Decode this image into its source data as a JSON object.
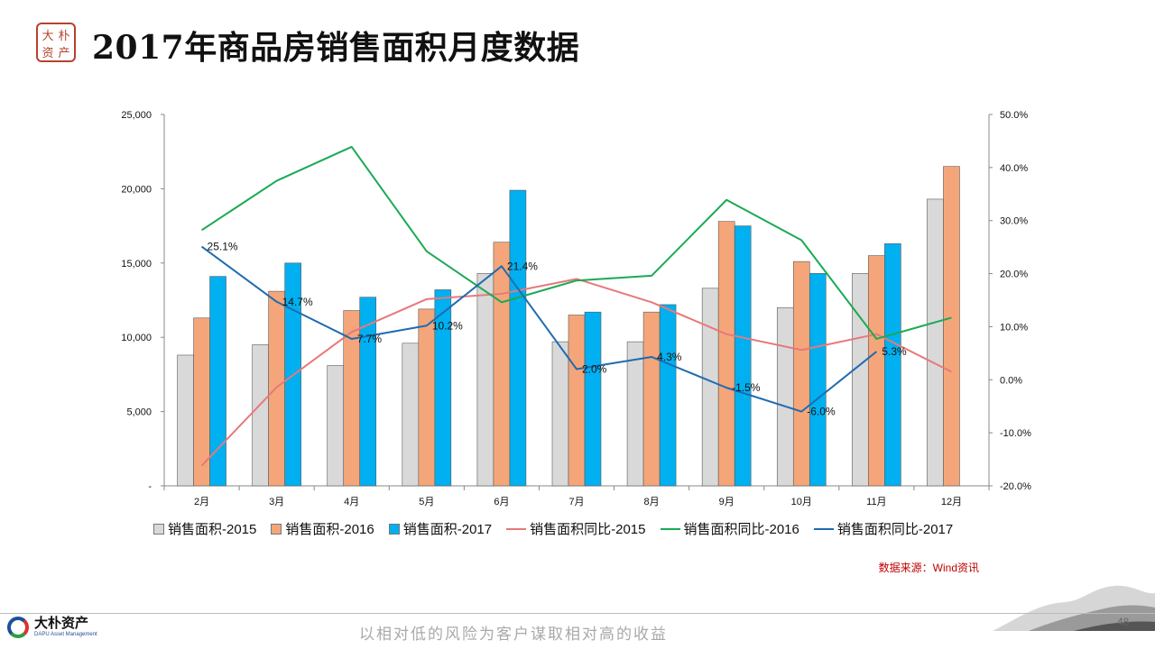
{
  "header": {
    "seal_chars": [
      "大",
      "朴",
      "资",
      "产"
    ],
    "title": "2017年商品房销售面积月度数据"
  },
  "source_note": "数据来源：Wind资讯",
  "footer": {
    "brand_name": "大朴资产",
    "brand_en": "DAPU Asset Management",
    "slogan": "以相对低的风险为客户谋取相对高的收益",
    "page_number": "48"
  },
  "colors": {
    "bar_2015": "#d9d9d9",
    "bar_2016": "#f4a67a",
    "bar_2017": "#00b0f0",
    "line_2015": "#e8787a",
    "line_2016": "#1aaa55",
    "line_2017": "#1f6bb0"
  },
  "chart_data": {
    "type": "bar",
    "categories": [
      "2月",
      "3月",
      "4月",
      "5月",
      "6月",
      "7月",
      "8月",
      "9月",
      "10月",
      "11月",
      "12月"
    ],
    "ylim": [
      0,
      25000
    ],
    "y_ticks": [
      "-",
      "5,000",
      "10,000",
      "15,000",
      "20,000",
      "25,000"
    ],
    "y2lim": [
      -20,
      50
    ],
    "y2_ticks": [
      "-20.0%",
      "-10.0%",
      "0.0%",
      "10.0%",
      "20.0%",
      "30.0%",
      "40.0%",
      "50.0%"
    ],
    "grid": false,
    "legend_position": "bottom",
    "series": [
      {
        "name": "销售面积-2015",
        "kind": "bar",
        "axis": "left",
        "values": [
          8800,
          9500,
          8100,
          9600,
          14300,
          9700,
          9700,
          13300,
          12000,
          14300,
          19300
        ]
      },
      {
        "name": "销售面积-2016",
        "kind": "bar",
        "axis": "left",
        "values": [
          11300,
          13100,
          11800,
          11900,
          16400,
          11500,
          11700,
          17800,
          15100,
          15500,
          21500
        ]
      },
      {
        "name": "销售面积-2017",
        "kind": "bar",
        "axis": "left",
        "values": [
          14100,
          15000,
          12700,
          13200,
          19900,
          11700,
          12200,
          17500,
          14300,
          16300,
          null
        ]
      },
      {
        "name": "销售面积同比-2015",
        "kind": "line",
        "axis": "right",
        "values": [
          -16.2,
          -1.4,
          9.0,
          15.2,
          16.2,
          19.0,
          14.6,
          8.6,
          5.6,
          8.6,
          1.5
        ]
      },
      {
        "name": "销售面积同比-2016",
        "kind": "line",
        "axis": "right",
        "values": [
          28.2,
          37.5,
          43.9,
          24.2,
          14.6,
          18.7,
          19.6,
          33.9,
          26.3,
          7.7,
          11.7
        ]
      },
      {
        "name": "销售面积同比-2017",
        "kind": "line",
        "axis": "right",
        "values": [
          25.1,
          14.7,
          7.7,
          10.2,
          21.4,
          2.0,
          4.3,
          -1.5,
          -6.0,
          5.3,
          null
        ],
        "labels": [
          "25.1%",
          "14.7%",
          "7.7%",
          "10.2%",
          "21.4%",
          "2.0%",
          "4.3%",
          "-1.5%",
          "-6.0%",
          "5.3%",
          ""
        ]
      }
    ]
  }
}
